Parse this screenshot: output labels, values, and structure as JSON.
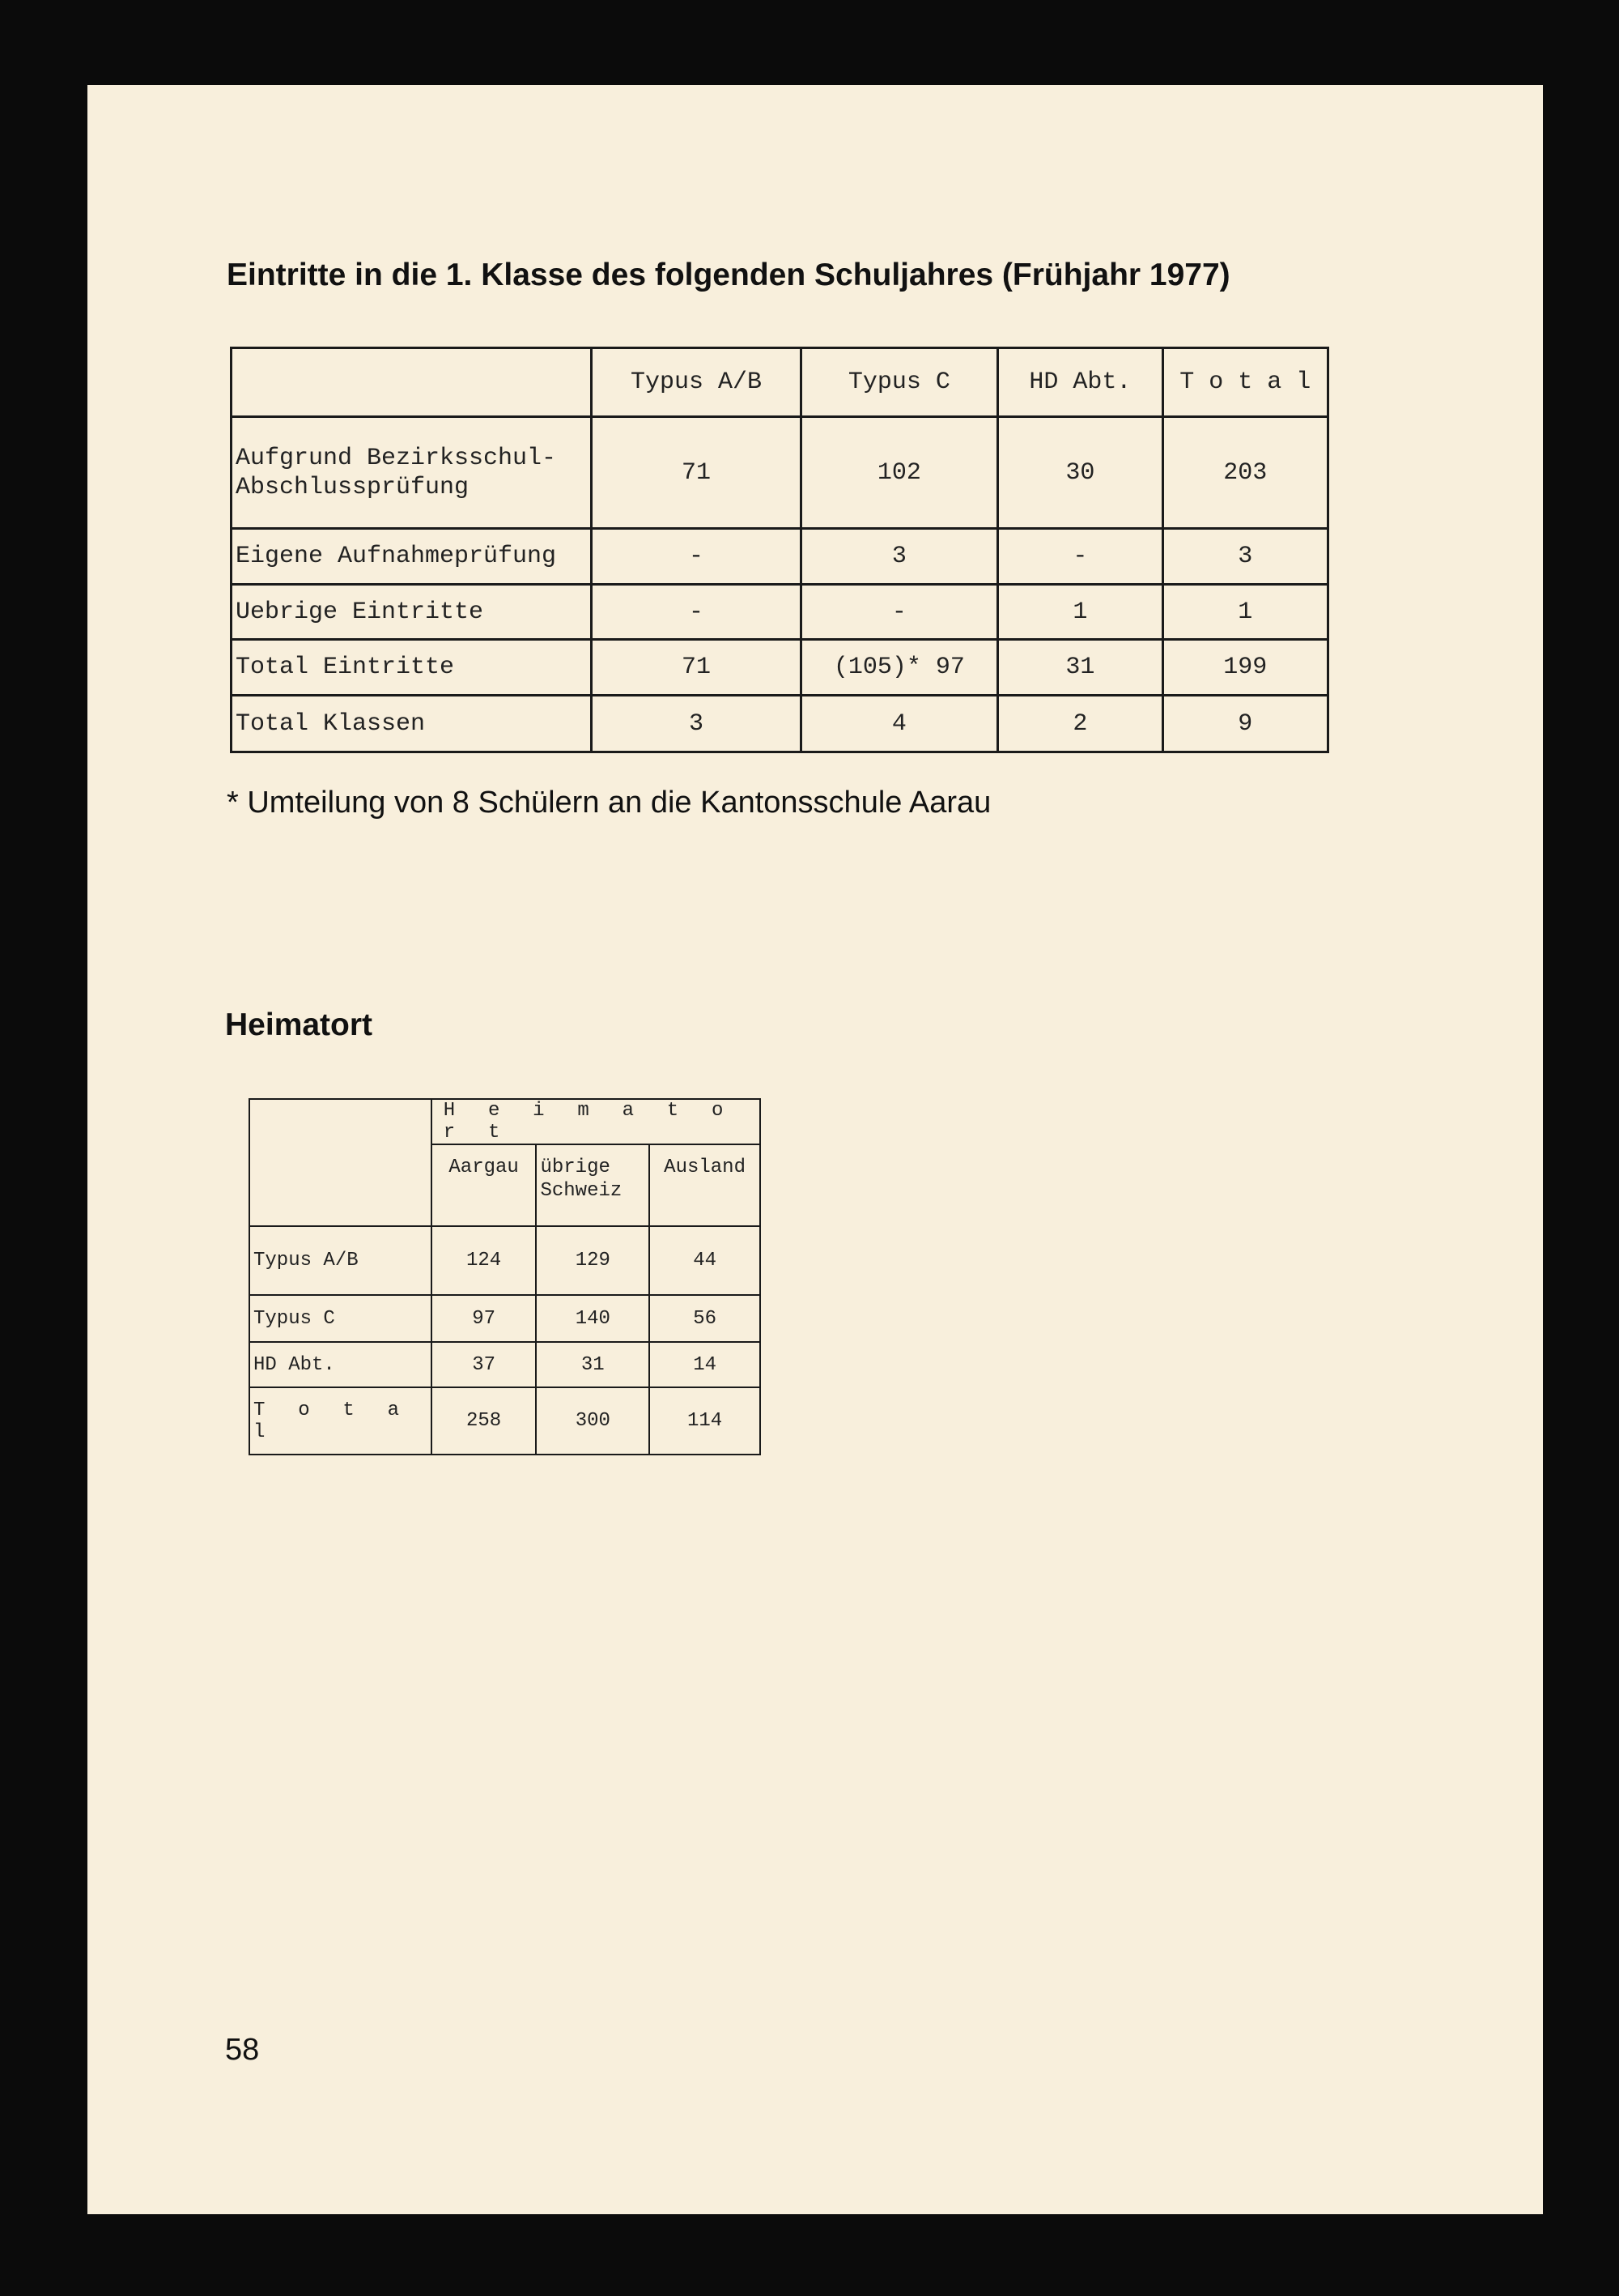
{
  "section1": {
    "title": "Eintritte in die 1. Klasse des folgenden Schuljahres (Frühjahr 1977)",
    "columns": [
      "",
      "Typus A/B",
      "Typus C",
      "HD Abt.",
      "T o t a l"
    ],
    "rows": [
      {
        "label1": "Aufgrund Bezirksschul-",
        "label2": "Abschlussprüfung",
        "values": [
          "71",
          "102",
          "30",
          "203"
        ]
      },
      {
        "label1": "Eigene Aufnahmeprüfung",
        "values": [
          "-",
          "3",
          "-",
          "3"
        ]
      },
      {
        "label1": "Uebrige Eintritte",
        "values": [
          "-",
          "-",
          "1",
          "1"
        ]
      },
      {
        "label1": "Total Eintritte",
        "values": [
          "71",
          "(105)* 97",
          "31",
          "199"
        ]
      },
      {
        "label1": "Total Klassen",
        "values": [
          "3",
          "4",
          "2",
          "9"
        ]
      }
    ],
    "footnote": "* Umteilung von 8 Schülern an die Kantonsschule Aarau"
  },
  "section2": {
    "title": "Heimatort",
    "group_header": "H e i m a t o r t",
    "columns": [
      "Aargau",
      "übrige Schweiz",
      "Ausland"
    ],
    "col2_line1": "übrige",
    "col2_line2": "Schweiz",
    "rows": [
      {
        "label": "Typus A/B",
        "values": [
          "124",
          "129",
          "44"
        ]
      },
      {
        "label": "Typus C",
        "values": [
          "97",
          "140",
          "56"
        ]
      },
      {
        "label": "HD Abt.",
        "values": [
          "37",
          "31",
          "14"
        ]
      },
      {
        "label": "T o t a l",
        "values": [
          "258",
          "300",
          "114"
        ]
      }
    ]
  },
  "page_number": "58"
}
